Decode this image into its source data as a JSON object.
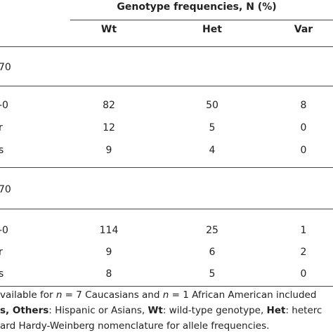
{
  "header": {
    "title": "Genotype frequencies, N (%)",
    "columns": [
      "Wt",
      "Het",
      "Var"
    ]
  },
  "groups": [
    {
      "label": "70",
      "rows": [
        {
          "label": "-0",
          "cells": [
            "82",
            "50",
            "8"
          ]
        },
        {
          "label": "r",
          "cells": [
            "12",
            "5",
            "0"
          ]
        },
        {
          "label": "s",
          "cells": [
            "9",
            "4",
            "0"
          ]
        }
      ]
    },
    {
      "label": "70",
      "rows": [
        {
          "label": "-0",
          "cells": [
            "114",
            "25",
            "1"
          ]
        },
        {
          "label": "r",
          "cells": [
            "9",
            "6",
            "2"
          ]
        },
        {
          "label": "s",
          "cells": [
            "8",
            "5",
            "0"
          ]
        }
      ]
    }
  ],
  "footnote": {
    "lines": [
      [
        {
          "text": "vailable for ",
          "style": "normal"
        },
        {
          "text": "n",
          "style": "italic"
        },
        {
          "text": " = 7 Caucasians and ",
          "style": "normal"
        },
        {
          "text": "n",
          "style": "italic"
        },
        {
          "text": " = 1 African American included",
          "style": "normal"
        }
      ],
      [
        {
          "text": "s, ",
          "style": "bold"
        },
        {
          "text": "Others",
          "style": "bold"
        },
        {
          "text": ": Hispanic or Asians, ",
          "style": "normal"
        },
        {
          "text": "Wt",
          "style": "bold"
        },
        {
          "text": ": wild-type genotype, ",
          "style": "normal"
        },
        {
          "text": "Het",
          "style": "bold"
        },
        {
          "text": ": heterc",
          "style": "normal"
        }
      ],
      [
        {
          "text": "ard Hardy-Weinberg nomenclature for allele frequencies.",
          "style": "normal"
        }
      ]
    ]
  }
}
